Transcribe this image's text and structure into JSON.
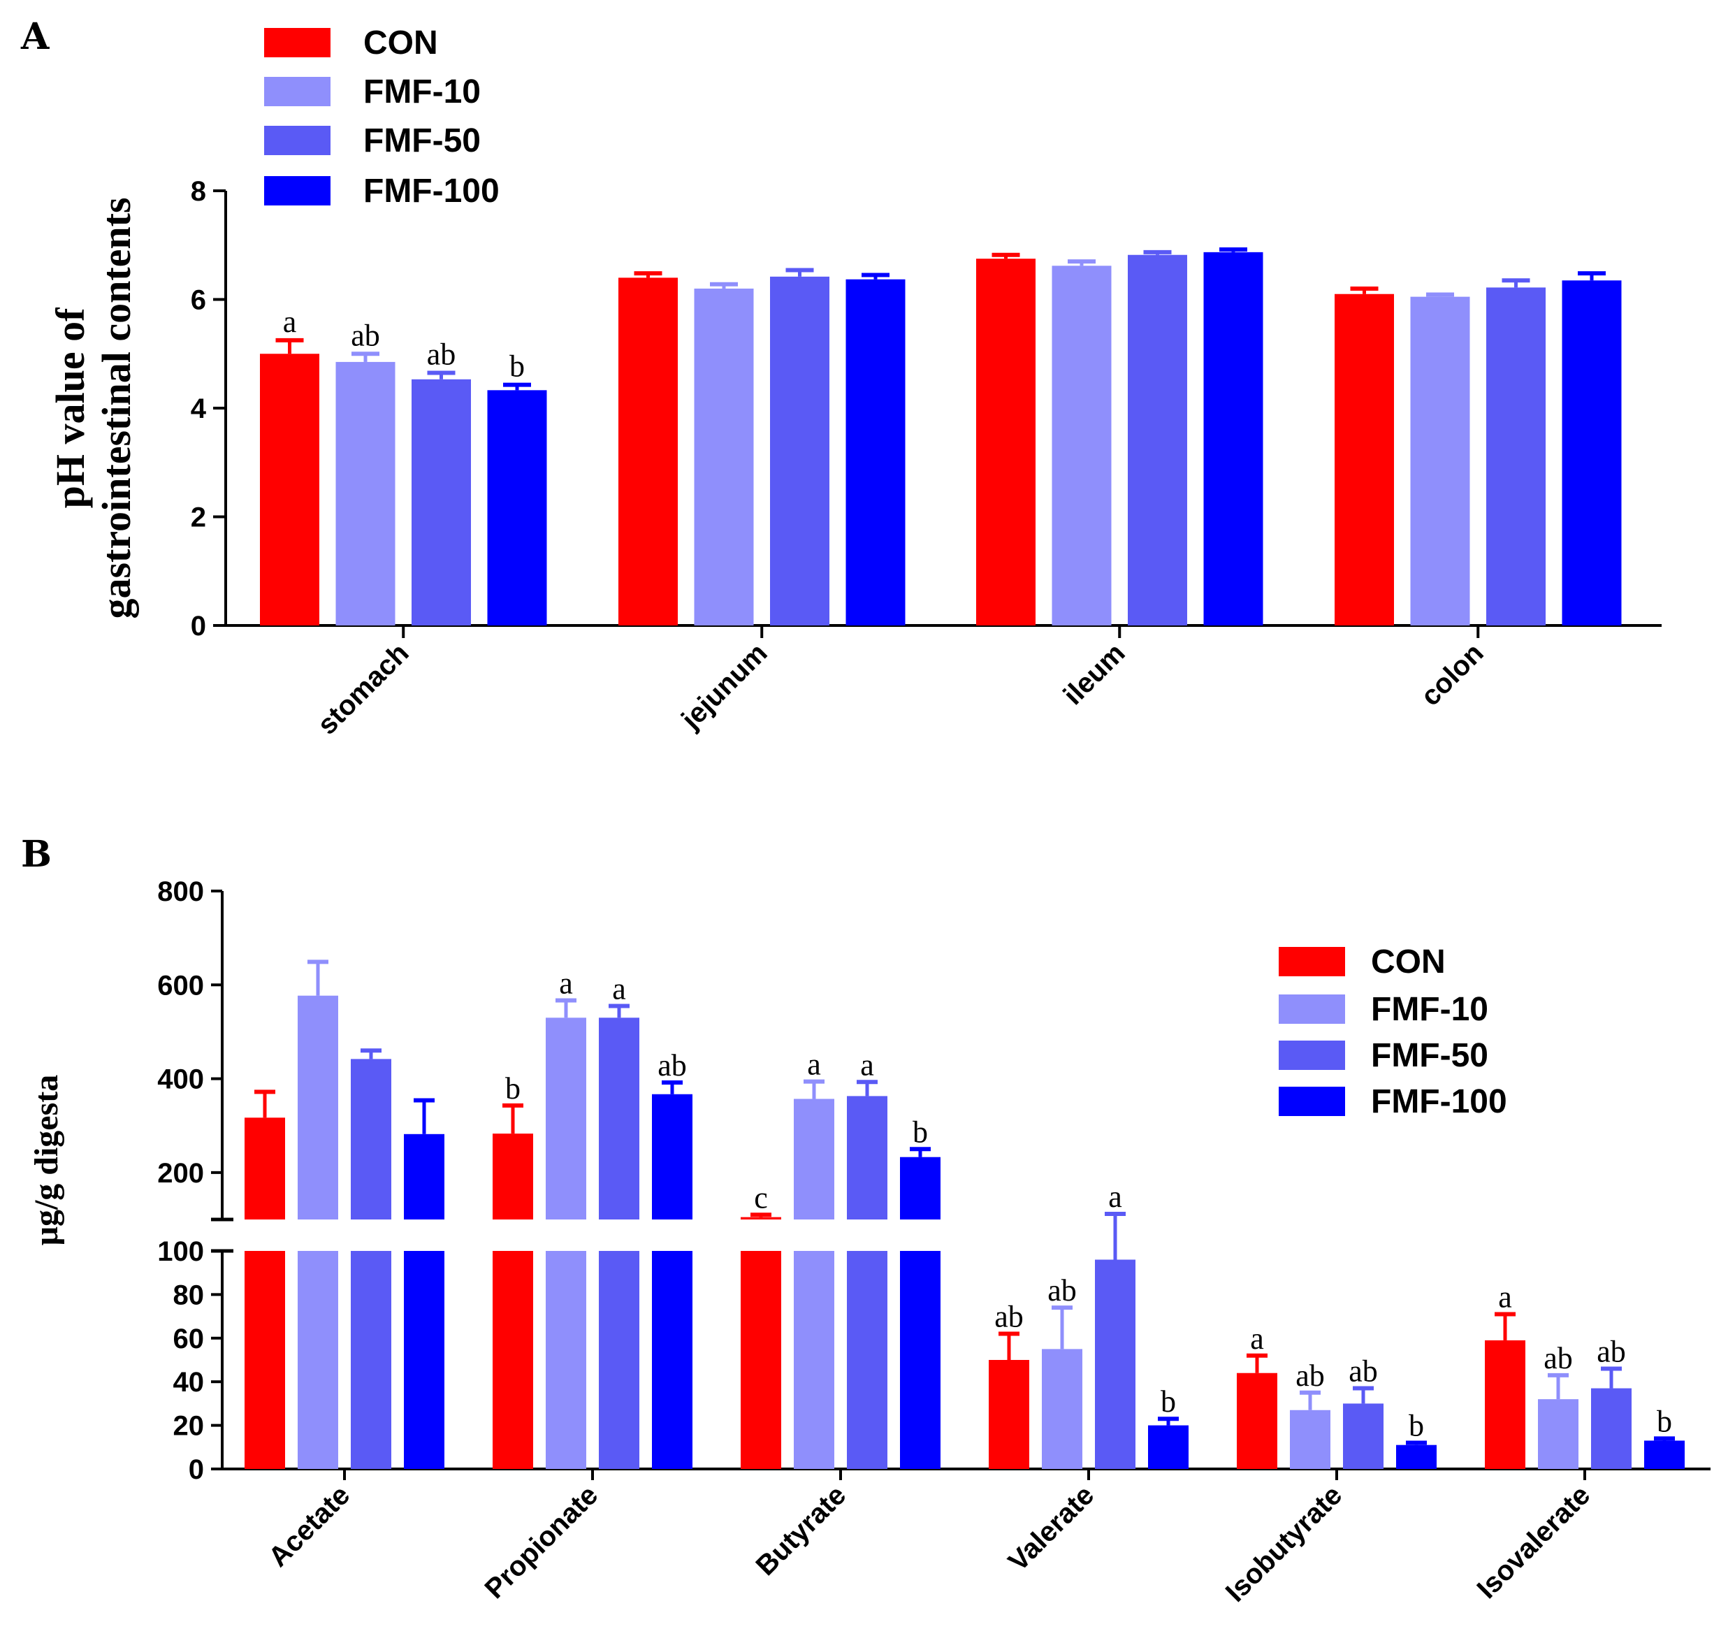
{
  "series_colors": [
    "#ff0000",
    "#8f8ffc",
    "#5a5af5",
    "#0000ff"
  ],
  "chart_data": [
    {
      "panel": "A",
      "type": "bar",
      "ylabel": [
        "pH value of",
        "gastrointestinal contents"
      ],
      "ylim": [
        0,
        8
      ],
      "yticks": [
        0,
        2,
        4,
        6,
        8
      ],
      "categories": [
        "stomach",
        "jejunum",
        "ileum",
        "colon"
      ],
      "legend": [
        "CON",
        "FMF-10",
        "FMF-50",
        "FMF-100"
      ],
      "legend_position": "top-left",
      "series": [
        {
          "name": "CON",
          "values": [
            5.0,
            6.4,
            6.75,
            6.1
          ],
          "errors": [
            0.25,
            0.08,
            0.07,
            0.1
          ]
        },
        {
          "name": "FMF-10",
          "values": [
            4.85,
            6.2,
            6.62,
            6.05
          ],
          "errors": [
            0.15,
            0.08,
            0.08,
            0.04
          ]
        },
        {
          "name": "FMF-50",
          "values": [
            4.53,
            6.42,
            6.82,
            6.22
          ],
          "errors": [
            0.12,
            0.12,
            0.05,
            0.13
          ]
        },
        {
          "name": "FMF-100",
          "values": [
            4.33,
            6.37,
            6.87,
            6.35
          ],
          "errors": [
            0.1,
            0.08,
            0.05,
            0.13
          ]
        }
      ],
      "significance": [
        [
          "a",
          "",
          "",
          ""
        ],
        [
          "ab",
          "",
          "",
          ""
        ],
        [
          "ab",
          "",
          "",
          ""
        ],
        [
          "b",
          "",
          "",
          ""
        ]
      ]
    },
    {
      "panel": "B",
      "type": "bar",
      "ylabel": "μg/g digesta",
      "axis_break": true,
      "lower_range": [
        0,
        100
      ],
      "upper_range": [
        100,
        800
      ],
      "lower_ticks": [
        0,
        20,
        40,
        60,
        80,
        100
      ],
      "upper_ticks": [
        200,
        400,
        600,
        800
      ],
      "categories": [
        "Acetate",
        "Propionate",
        "Butyrate",
        "Valerate",
        "Isobutyrate",
        "Isovalerate"
      ],
      "legend": [
        "CON",
        "FMF-10",
        "FMF-50",
        "FMF-100"
      ],
      "legend_position": "top-right",
      "series": [
        {
          "name": "CON",
          "values": [
            317,
            283,
            105,
            50,
            44,
            59
          ],
          "errors": [
            55,
            60,
            5,
            12,
            8,
            12
          ]
        },
        {
          "name": "FMF-10",
          "values": [
            577,
            530,
            357,
            55,
            27,
            32
          ],
          "errors": [
            72,
            37,
            37,
            19,
            8,
            11
          ]
        },
        {
          "name": "FMF-50",
          "values": [
            442,
            530,
            363,
            96,
            30,
            37
          ],
          "errors": [
            18,
            25,
            30,
            16,
            7,
            9
          ]
        },
        {
          "name": "FMF-100",
          "values": [
            282,
            367,
            233,
            20,
            11,
            13
          ],
          "errors": [
            72,
            25,
            17,
            3,
            1,
            1
          ]
        }
      ],
      "significance": [
        [
          "",
          "b",
          "c",
          "ab",
          "a",
          "a"
        ],
        [
          "",
          "a",
          "a",
          "ab",
          "ab",
          "ab"
        ],
        [
          "",
          "a",
          "a",
          "a",
          "ab",
          "ab"
        ],
        [
          "",
          "ab",
          "b",
          "b",
          "b",
          "b"
        ]
      ]
    }
  ]
}
